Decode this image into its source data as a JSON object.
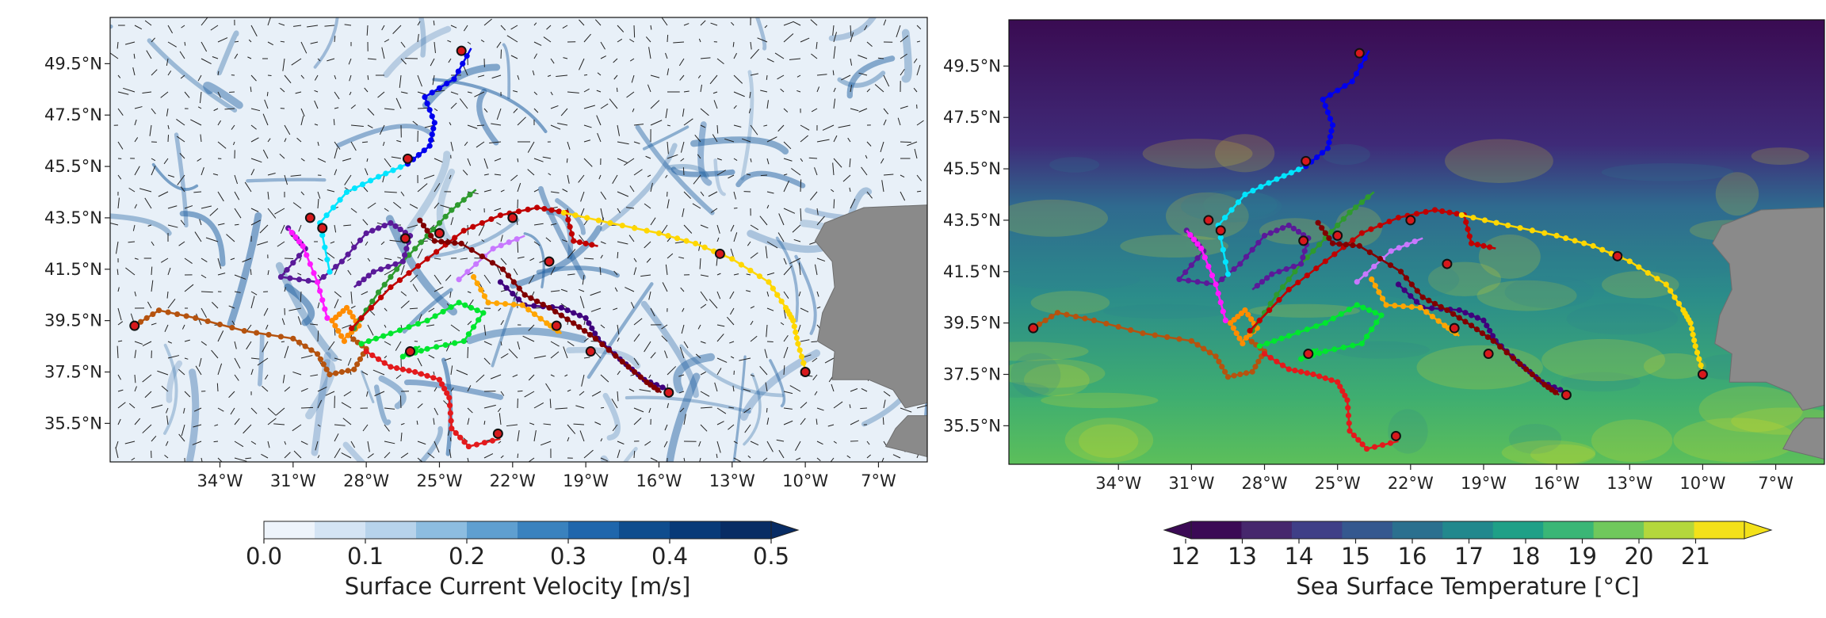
{
  "left_map": {
    "lat_labels": [
      "49.5°N",
      "47.5°N",
      "45.5°N",
      "43.5°N",
      "41.5°N",
      "39.5°N",
      "37.5°N",
      "35.5°N"
    ],
    "lon_labels": [
      "34°W",
      "31°W",
      "28°W",
      "25°W",
      "22°W",
      "19°W",
      "16°W",
      "13°W",
      "10°W",
      "7°W"
    ],
    "colorbar": {
      "label": "Surface Current Velocity [m/s]",
      "ticks": [
        "0.0",
        "0.1",
        "0.2",
        "0.3",
        "0.4",
        "0.5"
      ],
      "colors": [
        "#eef4fb",
        "#d4e4f4",
        "#b7d3eb",
        "#8dbde0",
        "#5f9fd0",
        "#3a82be",
        "#1f66ac",
        "#0f4d8e",
        "#083a78",
        "#082c64"
      ]
    }
  },
  "right_map": {
    "lat_labels": [
      "49.5°N",
      "47.5°N",
      "45.5°N",
      "43.5°N",
      "41.5°N",
      "39.5°N",
      "37.5°N",
      "35.5°N"
    ],
    "lon_labels": [
      "34°W",
      "31°W",
      "28°W",
      "25°W",
      "22°W",
      "19°W",
      "16°W",
      "13°W",
      "10°W",
      "7°W"
    ],
    "colorbar": {
      "label": "Sea Surface Temperature [°C]",
      "ticks": [
        "12",
        "13",
        "14",
        "15",
        "16",
        "17",
        "18",
        "19",
        "20",
        "21"
      ],
      "colors": [
        "#3b0a55",
        "#46276d",
        "#3f3f87",
        "#35588f",
        "#2b708f",
        "#22888d",
        "#1fa087",
        "#3ab676",
        "#70c85c",
        "#b4d73c",
        "#f3e11a"
      ]
    }
  },
  "colors": {
    "land": "#8a8a8a",
    "sst_cold": "#3a0b52",
    "sst_mid": "#2b8c8a",
    "sst_warm": "#5cbf5a",
    "current_bg": "#e8f0f8",
    "current_strong": "#1f5fa0"
  },
  "tracks": [
    {
      "color": "#b5530f",
      "points": [
        [
          -37.5,
          39.3
        ],
        [
          -36.5,
          39.9
        ],
        [
          -35,
          39.6
        ],
        [
          -33,
          39.1
        ],
        [
          -31,
          38.8
        ],
        [
          -30,
          38.2
        ],
        [
          -29.5,
          37.4
        ],
        [
          -28.5,
          37.6
        ],
        [
          -28,
          38.4
        ],
        [
          -28.7,
          38.9
        ]
      ]
    },
    {
      "color": "#e31a1c",
      "points": [
        [
          -28,
          38.3
        ],
        [
          -27,
          37.7
        ],
        [
          -26,
          37.5
        ],
        [
          -25,
          37.2
        ],
        [
          -24.6,
          36.5
        ],
        [
          -24.5,
          35.3
        ],
        [
          -23.8,
          34.6
        ],
        [
          -22.5,
          34.9
        ]
      ]
    },
    {
      "color": "#ff8c00",
      "points": [
        [
          -28.9,
          38.7
        ],
        [
          -29.4,
          39.5
        ],
        [
          -28.8,
          40
        ],
        [
          -28.3,
          39.3
        ],
        [
          -28.9,
          38.8
        ]
      ]
    },
    {
      "color": "#00e62e",
      "points": [
        [
          -28.2,
          38.6
        ],
        [
          -27,
          39
        ],
        [
          -25.5,
          39.5
        ],
        [
          -24.2,
          40.2
        ],
        [
          -23.2,
          39.8
        ],
        [
          -24,
          38.7
        ],
        [
          -25.5,
          38.4
        ],
        [
          -26.5,
          38.1
        ],
        [
          -25.8,
          38.5
        ]
      ]
    },
    {
      "color": "#2e9a2e",
      "points": [
        [
          -28.5,
          39.2
        ],
        [
          -27.5,
          40.6
        ],
        [
          -26.5,
          41.8
        ],
        [
          -25.5,
          42.8
        ],
        [
          -24.5,
          43.8
        ],
        [
          -23.5,
          44.6
        ]
      ]
    },
    {
      "color": "#c00000",
      "points": [
        [
          -28.6,
          39.2
        ],
        [
          -27,
          40.8
        ],
        [
          -25.5,
          41.9
        ],
        [
          -24,
          43
        ],
        [
          -22.5,
          43.6
        ],
        [
          -21,
          43.9
        ],
        [
          -19.8,
          43.7
        ],
        [
          -19.5,
          42.6
        ],
        [
          -18.5,
          42.4
        ]
      ]
    },
    {
      "color": "#ffd700",
      "points": [
        [
          -19.9,
          43.7
        ],
        [
          -18,
          43.3
        ],
        [
          -16,
          42.9
        ],
        [
          -14.5,
          42.5
        ],
        [
          -13,
          41.9
        ],
        [
          -11.5,
          41
        ],
        [
          -10.8,
          40
        ],
        [
          -10.5,
          39.5
        ],
        [
          -10.3,
          38.6
        ],
        [
          -10,
          37.6
        ]
      ]
    },
    {
      "color": "#5a1a99",
      "points": [
        [
          -31.2,
          43.1
        ],
        [
          -30.5,
          42.3
        ],
        [
          -31.5,
          41.2
        ],
        [
          -30,
          41
        ],
        [
          -29,
          41.8
        ],
        [
          -28,
          42.9
        ],
        [
          -27,
          43.3
        ],
        [
          -26.2,
          42.8
        ],
        [
          -26.5,
          41.8
        ],
        [
          -27.7,
          41.4
        ],
        [
          -28.5,
          40.8
        ]
      ]
    },
    {
      "color": "#3f007d",
      "points": [
        [
          -22.5,
          41
        ],
        [
          -21.5,
          40.1
        ],
        [
          -20,
          40
        ],
        [
          -19,
          39.6
        ],
        [
          -18.5,
          38.8
        ],
        [
          -17.6,
          38
        ],
        [
          -16.6,
          37.2
        ],
        [
          -15.6,
          36.8
        ]
      ]
    },
    {
      "color": "#00e5ff",
      "points": [
        [
          -29.5,
          41.4
        ],
        [
          -29.9,
          43.3
        ],
        [
          -28.8,
          44.5
        ],
        [
          -27.5,
          45.1
        ],
        [
          -26.3,
          45.6
        ]
      ]
    },
    {
      "color": "#0000ee",
      "points": [
        [
          -26.3,
          45.6
        ],
        [
          -25.4,
          46.3
        ],
        [
          -25.2,
          47.2
        ],
        [
          -25.6,
          48.2
        ],
        [
          -24.4,
          48.9
        ],
        [
          -23.7,
          50.1
        ]
      ]
    },
    {
      "color": "#ff1aff",
      "points": [
        [
          -29.6,
          39.6
        ],
        [
          -30,
          41
        ],
        [
          -30.6,
          42.4
        ],
        [
          -31.2,
          43.1
        ]
      ]
    },
    {
      "color": "#ffa500",
      "points": [
        [
          -23.6,
          41.2
        ],
        [
          -23,
          40.2
        ],
        [
          -21.6,
          40.1
        ],
        [
          -20.6,
          39.4
        ],
        [
          -20,
          39
        ]
      ]
    },
    {
      "color": "#c878ff",
      "points": [
        [
          -24.2,
          41.1
        ],
        [
          -22.8,
          42.3
        ],
        [
          -21.5,
          42.8
        ]
      ]
    },
    {
      "color": "#800000",
      "points": [
        [
          -25.8,
          43.4
        ],
        [
          -25.2,
          42.6
        ],
        [
          -24.1,
          42.5
        ],
        [
          -22.4,
          41.5
        ],
        [
          -21.5,
          40.5
        ],
        [
          -20.5,
          40
        ],
        [
          -19.5,
          39.4
        ],
        [
          -18.6,
          38.8
        ],
        [
          -17.5,
          37.9
        ],
        [
          -16.5,
          37.1
        ],
        [
          -15.9,
          36.7
        ]
      ]
    }
  ],
  "endpoints": [
    [
      -24.1,
      50.0
    ],
    [
      -22.0,
      43.5
    ],
    [
      -26.3,
      45.8
    ],
    [
      -29.8,
      43.1
    ],
    [
      -20.5,
      41.8
    ],
    [
      -13.5,
      42.1
    ],
    [
      -10.0,
      37.5
    ],
    [
      -26.2,
      38.3
    ],
    [
      -37.5,
      39.3
    ],
    [
      -22.6,
      35.1
    ],
    [
      -15.6,
      36.7
    ],
    [
      -18.8,
      38.3
    ],
    [
      -20.2,
      39.3
    ],
    [
      -25.0,
      42.9
    ],
    [
      -26.4,
      42.7
    ],
    [
      -30.3,
      43.5
    ]
  ],
  "land": [
    [
      [
        -7.6,
        43.9
      ],
      [
        -9.2,
        43.3
      ],
      [
        -9.6,
        42.6
      ],
      [
        -8.9,
        41.8
      ],
      [
        -8.8,
        40.8
      ],
      [
        -9.3,
        39.8
      ],
      [
        -9.5,
        38.7
      ],
      [
        -8.8,
        38.3
      ],
      [
        -8.9,
        37.2
      ],
      [
        -7.4,
        37.2
      ],
      [
        -6.4,
        36.8
      ],
      [
        -5.9,
        36.1
      ],
      [
        -5.0,
        36.3
      ],
      [
        -5.0,
        44.0
      ]
    ],
    [
      [
        -5.8,
        35.8
      ],
      [
        -6.3,
        35.3
      ],
      [
        -6.7,
        34.6
      ],
      [
        -5.0,
        34.2
      ],
      [
        -5.0,
        35.8
      ]
    ]
  ],
  "extent": {
    "lon": [
      -38.5,
      -5.0
    ],
    "lat": [
      34.0,
      51.3
    ]
  }
}
